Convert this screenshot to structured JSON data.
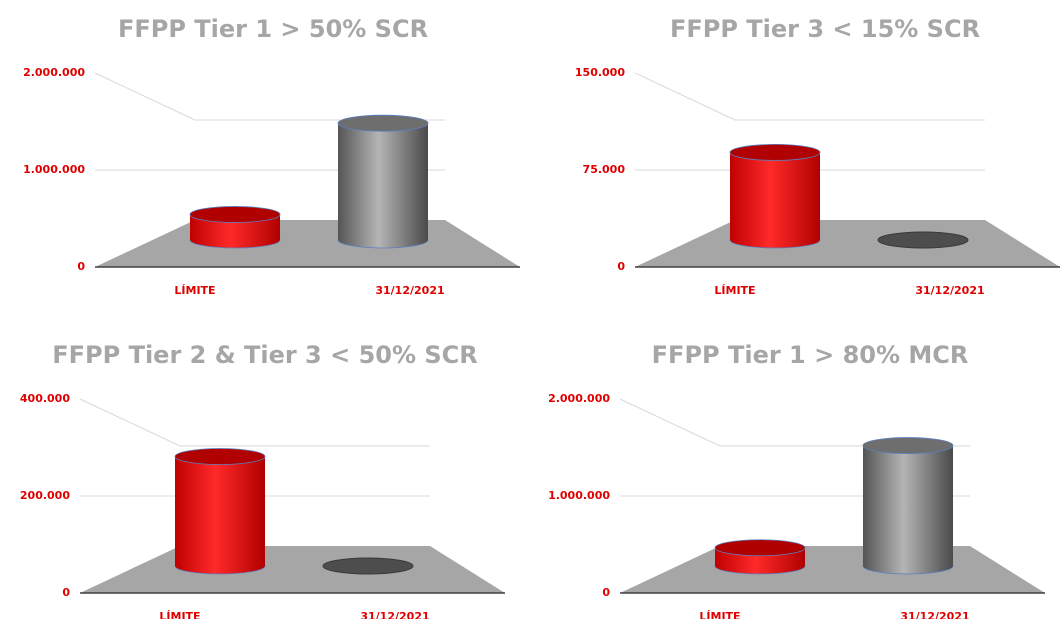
{
  "chart_data": [
    {
      "type": "bar",
      "title": "FFPP Tier 1 > 50% SCR",
      "categories": [
        "LÍMITE",
        "31/12/2021"
      ],
      "values": [
        350000,
        1600000
      ],
      "colors": [
        "#ff0000",
        "#808080"
      ],
      "ylim": [
        0,
        2000000
      ],
      "yticks": [
        0,
        {
          "value": 1000000,
          "label": "1.000.000"
        },
        {
          "value": 2000000,
          "label": "2.000.000"
        }
      ]
    },
    {
      "type": "bar",
      "title": "FFPP Tier 3 < 15% SCR",
      "categories": [
        "LÍMITE",
        "31/12/2021"
      ],
      "values": [
        90000,
        0
      ],
      "colors": [
        "#ff0000",
        "#808080"
      ],
      "ylim": [
        0,
        150000
      ],
      "yticks": [
        0,
        {
          "value": 75000,
          "label": "75.000"
        },
        {
          "value": 150000,
          "label": "150.000"
        }
      ]
    },
    {
      "type": "bar",
      "title": "FFPP Tier 2 & Tier 3 < 50% SCR",
      "categories": [
        "LÍMITE",
        "31/12/2021"
      ],
      "values": [
        300000,
        0
      ],
      "colors": [
        "#ff0000",
        "#808080"
      ],
      "ylim": [
        0,
        400000
      ],
      "yticks": [
        0,
        {
          "value": 200000,
          "label": "200.000"
        },
        {
          "value": 400000,
          "label": "400.000"
        }
      ]
    },
    {
      "type": "bar",
      "title": "FFPP Tier 1 > 80% MCR",
      "categories": [
        "LÍMITE",
        "31/12/2021"
      ],
      "values": [
        250000,
        1650000
      ],
      "colors": [
        "#ff0000",
        "#808080"
      ],
      "ylim": [
        0,
        2000000
      ],
      "yticks": [
        0,
        {
          "value": 1000000,
          "label": "1.000.000"
        },
        {
          "value": 2000000,
          "label": "2.000.000"
        }
      ]
    }
  ]
}
